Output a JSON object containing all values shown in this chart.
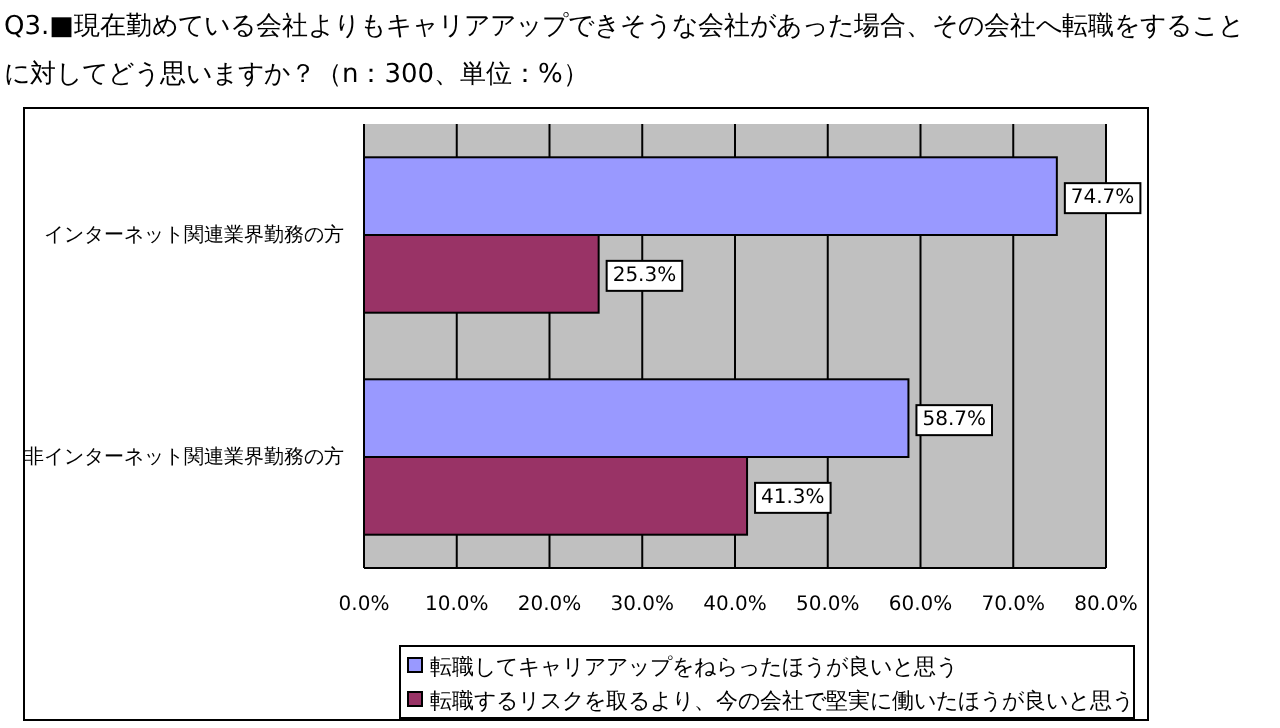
{
  "chart_data": {
    "type": "bar",
    "orientation": "horizontal",
    "title": "Q3.■現在勤めている会社よりもキャリアアップできそうな会社があった場合、その会社へ転職をすることに対してどう思いますか？（n：300、単位：%）",
    "categories": [
      "インターネット関連業界勤務の方",
      "非インターネット関連業界勤務の方"
    ],
    "series": [
      {
        "name": "転職してキャリアアップをねらったほうが良いと思う",
        "color": "#9999ff",
        "values": [
          74.7,
          58.7
        ],
        "value_labels": [
          "74.7%",
          "58.7%"
        ]
      },
      {
        "name": "転職するリスクを取るより、今の会社で堅実に働いたほうが良いと思う",
        "color": "#993366",
        "values": [
          25.3,
          41.3
        ],
        "value_labels": [
          "25.3%",
          "41.3%"
        ]
      }
    ],
    "xlim": [
      0,
      80
    ],
    "xticks": [
      {
        "value": 0,
        "label": "0.0%"
      },
      {
        "value": 10,
        "label": "10.0%"
      },
      {
        "value": 20,
        "label": "20.0%"
      },
      {
        "value": 30,
        "label": "30.0%"
      },
      {
        "value": 40,
        "label": "40.0%"
      },
      {
        "value": 50,
        "label": "50.0%"
      },
      {
        "value": 60,
        "label": "60.0%"
      },
      {
        "value": 70,
        "label": "70.0%"
      },
      {
        "value": 80,
        "label": "80.0%"
      }
    ],
    "grid": "x",
    "legend": "bottom"
  }
}
